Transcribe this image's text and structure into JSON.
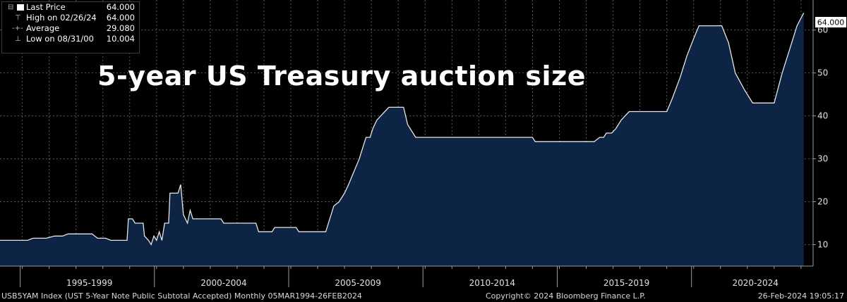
{
  "legend": {
    "items": [
      {
        "label": "Last Price",
        "value": "64.000"
      },
      {
        "label": "High on 02/26/24",
        "value": "64.000"
      },
      {
        "label": "Average",
        "value": "29.080"
      },
      {
        "label": "Low on 08/31/00",
        "value": "10.004"
      }
    ]
  },
  "overlay_title": "5-year US Treasury auction size",
  "footer": {
    "left": "USB5YAM Index (UST 5-Year Note Public Subtotal Accepted)  Monthly 05MAR1994-26FEB2024",
    "center": "Copyright© 2024 Bloomberg Finance L.P.",
    "right": "26-Feb-2024 19:05:17"
  },
  "last_price_label": "64.000",
  "colors": {
    "background": "#000000",
    "area_fill": "#0d2444",
    "line": "#e6e6e6",
    "grid": "#5a5a5a"
  },
  "chart_data": {
    "type": "area",
    "title": "",
    "xlabel": "",
    "ylabel": "",
    "ylim": [
      5,
      67
    ],
    "yticks": [
      10,
      20,
      30,
      40,
      50,
      60
    ],
    "xlim": [
      1994.17,
      2024.45
    ],
    "x_tick_labels": [
      {
        "label": "1995-1999",
        "x": 1997.5
      },
      {
        "label": "2000-2004",
        "x": 2002.5
      },
      {
        "label": "2005-2009",
        "x": 2007.5
      },
      {
        "label": "2010-2014",
        "x": 2012.5
      },
      {
        "label": "2015-2019",
        "x": 2017.5
      },
      {
        "label": "2020-2024",
        "x": 2022.3
      }
    ],
    "x_period_dividers": [
      1995,
      2000,
      2005,
      2010,
      2015,
      2020
    ],
    "series": [
      {
        "values": [
          [
            1994.17,
            11
          ],
          [
            1995.2,
            11
          ],
          [
            1995.4,
            11.5
          ],
          [
            1995.9,
            11.5
          ],
          [
            1996.2,
            12
          ],
          [
            1996.5,
            12
          ],
          [
            1996.7,
            12.5
          ],
          [
            1997.6,
            12.5
          ],
          [
            1997.8,
            11.5
          ],
          [
            1998.1,
            11.5
          ],
          [
            1998.3,
            11
          ],
          [
            1998.9,
            11
          ],
          [
            1998.95,
            16
          ],
          [
            1999.1,
            16
          ],
          [
            1999.2,
            15
          ],
          [
            1999.5,
            15
          ],
          [
            1999.55,
            12
          ],
          [
            1999.7,
            11
          ],
          [
            1999.8,
            10
          ],
          [
            1999.9,
            12
          ],
          [
            2000.0,
            11
          ],
          [
            2000.1,
            13
          ],
          [
            2000.2,
            11
          ],
          [
            2000.3,
            15
          ],
          [
            2000.45,
            15
          ],
          [
            2000.5,
            22
          ],
          [
            2000.8,
            22
          ],
          [
            2000.9,
            24
          ],
          [
            2001.0,
            17
          ],
          [
            2001.15,
            15
          ],
          [
            2001.25,
            18
          ],
          [
            2001.35,
            16
          ],
          [
            2002.4,
            16
          ],
          [
            2002.5,
            15
          ],
          [
            2003.7,
            15
          ],
          [
            2003.8,
            13
          ],
          [
            2004.3,
            13
          ],
          [
            2004.4,
            14
          ],
          [
            2005.2,
            14
          ],
          [
            2005.3,
            13
          ],
          [
            2006.3,
            13
          ],
          [
            2006.45,
            16
          ],
          [
            2006.6,
            19
          ],
          [
            2006.8,
            20
          ],
          [
            2007.0,
            22
          ],
          [
            2007.15,
            24
          ],
          [
            2007.35,
            27
          ],
          [
            2007.55,
            30
          ],
          [
            2007.7,
            33
          ],
          [
            2007.8,
            35
          ],
          [
            2007.95,
            35
          ],
          [
            2008.05,
            37
          ],
          [
            2008.2,
            39
          ],
          [
            2008.35,
            40
          ],
          [
            2008.5,
            41
          ],
          [
            2008.65,
            42
          ],
          [
            2009.2,
            42
          ],
          [
            2009.35,
            38
          ],
          [
            2009.55,
            36
          ],
          [
            2009.65,
            35
          ],
          [
            2014.0,
            35
          ],
          [
            2014.1,
            34
          ],
          [
            2016.3,
            34
          ],
          [
            2016.5,
            35
          ],
          [
            2016.65,
            35
          ],
          [
            2016.75,
            36
          ],
          [
            2016.95,
            36
          ],
          [
            2017.1,
            37
          ],
          [
            2017.3,
            39
          ],
          [
            2017.45,
            40
          ],
          [
            2017.6,
            41
          ],
          [
            2019.0,
            41
          ],
          [
            2019.2,
            44
          ],
          [
            2019.5,
            49
          ],
          [
            2019.75,
            54
          ],
          [
            2020.0,
            58
          ],
          [
            2020.2,
            61
          ],
          [
            2021.05,
            61
          ],
          [
            2021.3,
            57
          ],
          [
            2021.55,
            50
          ],
          [
            2021.9,
            46
          ],
          [
            2022.2,
            43
          ],
          [
            2023.0,
            43
          ],
          [
            2023.3,
            50
          ],
          [
            2023.6,
            56
          ],
          [
            2023.85,
            61
          ],
          [
            2024.1,
            64
          ]
        ]
      }
    ]
  }
}
